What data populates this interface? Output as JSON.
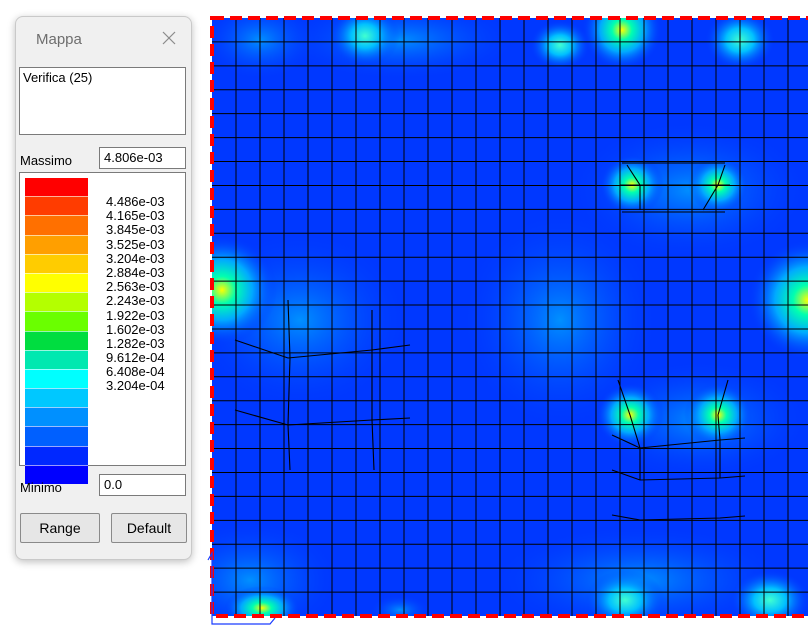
{
  "palette": {
    "title": "Mappa",
    "combination_text": "Verifica (25)",
    "max_label": "Massimo",
    "max_value": "4.806e-03",
    "min_label": "Minimo",
    "min_value": "0.0",
    "range_button": "Range",
    "default_button": "Default",
    "legend_colors": [
      "#ff0000",
      "#ff3c00",
      "#ff7000",
      "#ff9f00",
      "#ffcc00",
      "#ffff00",
      "#b4ff00",
      "#6aff00",
      "#00dd40",
      "#00e8b0",
      "#00ffff",
      "#00c8ff",
      "#0090ff",
      "#0060ff",
      "#0028ff",
      "#0000ff"
    ],
    "legend_values": [
      "4.486e-03",
      "4.165e-03",
      "3.845e-03",
      "3.525e-03",
      "3.204e-03",
      "2.884e-03",
      "2.563e-03",
      "2.243e-03",
      "1.922e-03",
      "1.602e-03",
      "1.282e-03",
      "9.612e-04",
      "6.408e-04",
      "3.204e-04"
    ]
  },
  "plot": {
    "background_color": "#0038ff",
    "mesh_color": "#000000",
    "boundary_color": "#ff0000"
  }
}
